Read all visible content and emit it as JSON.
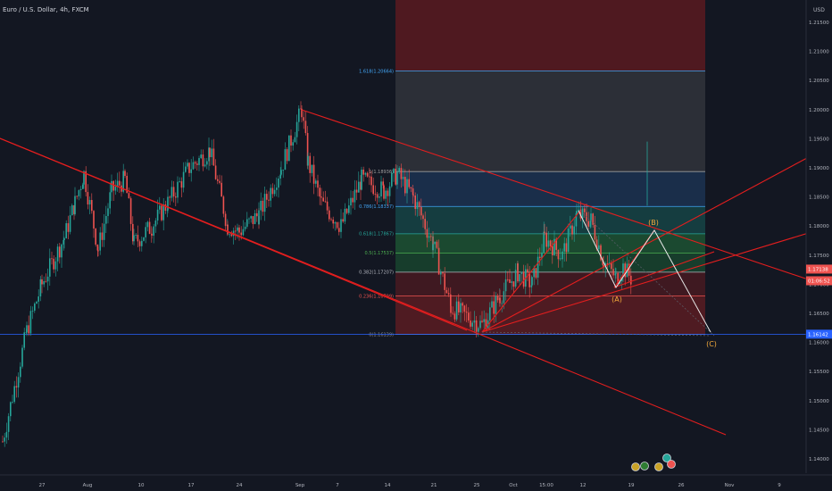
{
  "header": {
    "symbol_title": "Euro / U.S. Dollar, 4h, FXCM"
  },
  "price_axis": {
    "currency": "USD",
    "ticks": [
      "1.21500",
      "1.21000",
      "1.20500",
      "1.20000",
      "1.19500",
      "1.19000",
      "1.18500",
      "1.18000",
      "1.17500",
      "1.17000",
      "1.16500",
      "1.16000",
      "1.15500",
      "1.15000",
      "1.14500",
      "1.14000"
    ],
    "current_price_label": "1.17138",
    "countdown_label": "01:06:52",
    "level_price_label": "1.16142"
  },
  "time_axis": {
    "ticks": [
      "27",
      "Aug",
      "10",
      "17",
      "24",
      "Sep",
      "7",
      "14",
      "21",
      "25",
      "Oct",
      "15:00",
      "12",
      "19",
      "26",
      "Nov",
      "9"
    ]
  },
  "colors": {
    "background": "#131722",
    "up_candle": "#26a69a",
    "down_candle": "#ef5350",
    "trendline": "#e41e1e",
    "wave_line": "#e8e8e8",
    "wave_label": "#f2a93b"
  },
  "chart_data": {
    "type": "candlestick",
    "title": "Euro / U.S. Dollar, 4h, FXCM",
    "y_unit": "USD",
    "ylim": [
      1.137,
      1.218
    ],
    "grid": false,
    "close_path": [
      {
        "t": "Jul 22",
        "p": 1.143
      },
      {
        "t": "Jul 24",
        "p": 1.162
      },
      {
        "t": "Jul 27",
        "p": 1.17
      },
      {
        "t": "Jul 29",
        "p": 1.178
      },
      {
        "t": "Jul 30",
        "p": 1.184
      },
      {
        "t": "Jul 31",
        "p": 1.189
      },
      {
        "t": "Aug 3",
        "p": 1.176
      },
      {
        "t": "Aug 5",
        "p": 1.186
      },
      {
        "t": "Aug 7",
        "p": 1.188
      },
      {
        "t": "Aug 10",
        "p": 1.177
      },
      {
        "t": "Aug 12",
        "p": 1.18
      },
      {
        "t": "Aug 14",
        "p": 1.184
      },
      {
        "t": "Aug 17",
        "p": 1.19
      },
      {
        "t": "Aug 18",
        "p": 1.193
      },
      {
        "t": "Aug 21",
        "p": 1.18
      },
      {
        "t": "Aug 24",
        "p": 1.179
      },
      {
        "t": "Aug 27",
        "p": 1.182
      },
      {
        "t": "Aug 28",
        "p": 1.19
      },
      {
        "t": "Sep 1",
        "p": 1.2
      },
      {
        "t": "Sep 2",
        "p": 1.191
      },
      {
        "t": "Sep 4",
        "p": 1.184
      },
      {
        "t": "Sep 8",
        "p": 1.18
      },
      {
        "t": "Sep 10",
        "p": 1.188
      },
      {
        "t": "Sep 14",
        "p": 1.186
      },
      {
        "t": "Sep 15",
        "p": 1.189
      },
      {
        "t": "Sep 18",
        "p": 1.185
      },
      {
        "t": "Sep 21",
        "p": 1.177
      },
      {
        "t": "Sep 23",
        "p": 1.166
      },
      {
        "t": "Sep 25",
        "p": 1.163
      },
      {
        "t": "Sep 28",
        "p": 1.168
      },
      {
        "t": "Sep 30",
        "p": 1.172
      },
      {
        "t": "Oct 2",
        "p": 1.17
      },
      {
        "t": "Oct 5",
        "p": 1.178
      },
      {
        "t": "Oct 7",
        "p": 1.175
      },
      {
        "t": "Oct 9",
        "p": 1.182
      },
      {
        "t": "Oct 12",
        "p": 1.181
      },
      {
        "t": "Oct 14",
        "p": 1.174
      },
      {
        "t": "Oct 15",
        "p": 1.171
      },
      {
        "t": "Oct 16",
        "p": 1.173
      },
      {
        "t": "Oct 19",
        "p": 1.171
      }
    ],
    "fibonacci": [
      {
        "ratio": "0",
        "price": 1.16139,
        "label": "0(1.16139)"
      },
      {
        "ratio": "0.236",
        "price": 1.16799,
        "label": "0.236(1.16799)"
      },
      {
        "ratio": "0.382",
        "price": 1.17207,
        "label": "0.382(1.17207)"
      },
      {
        "ratio": "0.5",
        "price": 1.17537,
        "label": "0.5(1.17537)"
      },
      {
        "ratio": "0.618",
        "price": 1.17867,
        "label": "0.618(1.17867)"
      },
      {
        "ratio": "0.786",
        "price": 1.18337,
        "label": "0.786(1.18337)"
      },
      {
        "ratio": "1",
        "price": 1.18936,
        "label": "1(1.18936)"
      },
      {
        "ratio": "1.618",
        "price": 1.20664,
        "label": "1.618(1.20664)"
      }
    ],
    "wave_labels": [
      "(A)",
      "(B)",
      "(C)"
    ]
  }
}
